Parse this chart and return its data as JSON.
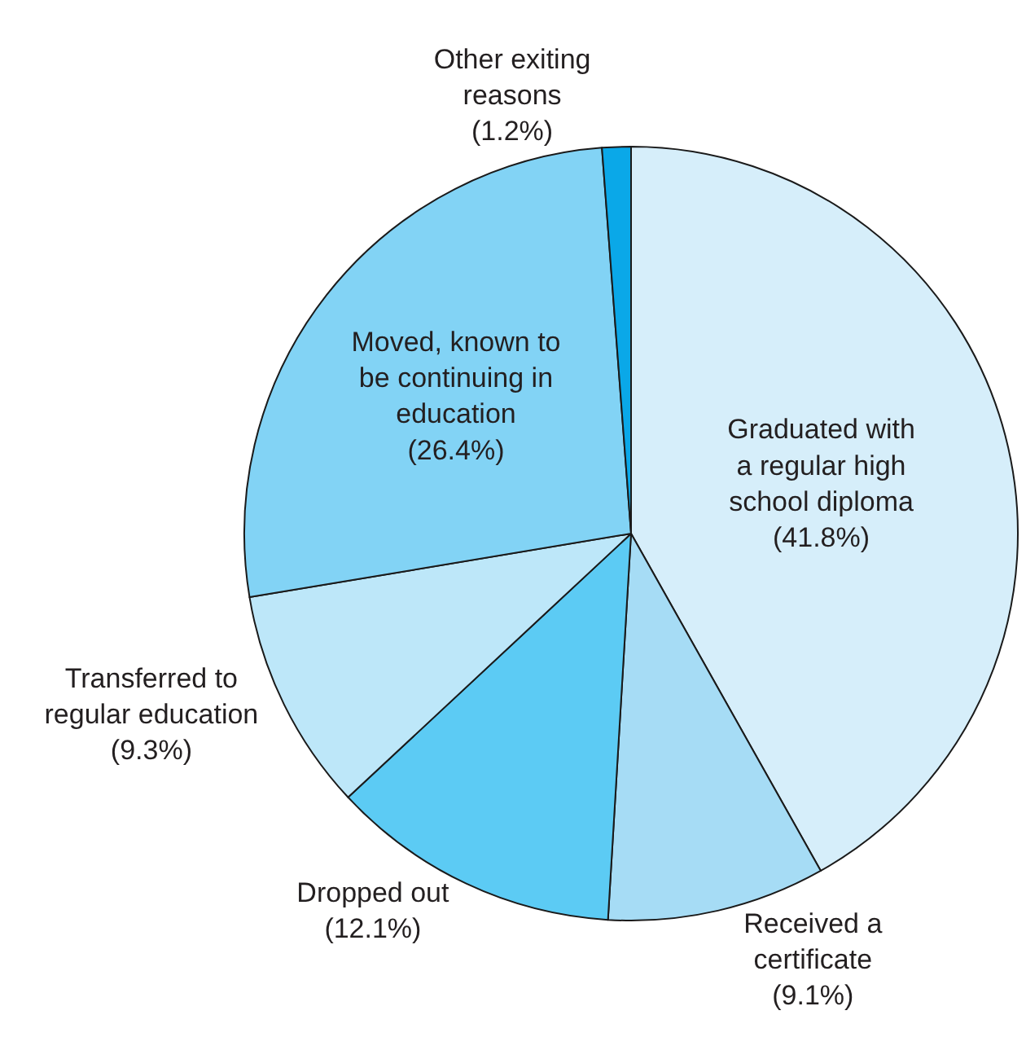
{
  "chart_data": {
    "type": "pie",
    "categories": [
      "Graduated with\na regular high\nschool diploma",
      "Received a\ncertificate",
      "Dropped out",
      "Transferred to\nregular education",
      "Moved, known to\nbe continuing in\neducation",
      "Other exiting\nreasons"
    ],
    "values": [
      41.8,
      9.1,
      12.1,
      9.3,
      26.4,
      1.2
    ],
    "value_labels": [
      "(41.8%)",
      "(9.1%)",
      "(12.1%)",
      "(9.3%)",
      "(26.4%)",
      "(1.2%)"
    ],
    "colors": [
      "#d6eefa",
      "#a6dcf5",
      "#5ccbf4",
      "#bde7f9",
      "#82d3f5",
      "#0aa8e8"
    ],
    "legend": false
  }
}
